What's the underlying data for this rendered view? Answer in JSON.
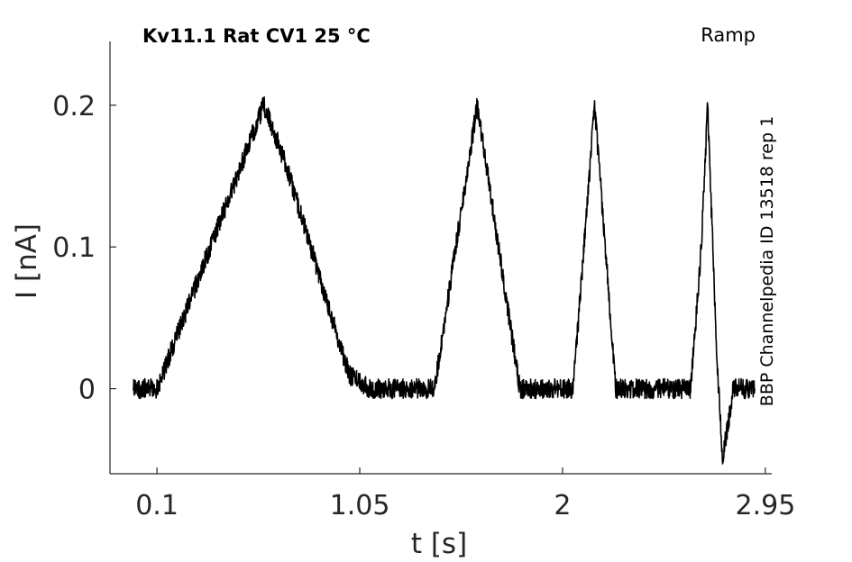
{
  "chart_data": {
    "type": "line",
    "title_left": "Kv11.1  Rat  CV1  25 °C",
    "title_right": "Ramp",
    "side_label": "BBP Channelpedia ID 13518 rep 1",
    "xlabel": "t [s]",
    "ylabel": "I [nA]",
    "xlim": [
      -0.12,
      2.98
    ],
    "ylim": [
      -0.06,
      0.245
    ],
    "x_ticks": [
      0.1,
      1.05,
      2,
      2.95
    ],
    "x_tick_labels": [
      "0.1",
      "1.05",
      "2",
      "2.95"
    ],
    "y_ticks": [
      0,
      0.1,
      0.2
    ],
    "y_tick_labels": [
      "0",
      "0.1",
      "0.2"
    ],
    "grid": false,
    "series": [
      {
        "color": "#000000",
        "x": [
          -0.01,
          0.05,
          0.1,
          0.2,
          0.3,
          0.4,
          0.5,
          0.6,
          0.7,
          0.8,
          0.9,
          1.0,
          1.1,
          1.2,
          1.3,
          1.4,
          1.5,
          1.6,
          1.7,
          1.8,
          1.9,
          2.0,
          2.05,
          2.1,
          2.15,
          2.2,
          2.25,
          2.3,
          2.4,
          2.5,
          2.6,
          2.65,
          2.68,
          2.72,
          2.75,
          2.8,
          2.9
        ],
        "y": [
          0,
          0,
          0,
          0.04,
          0.08,
          0.12,
          0.16,
          0.2,
          0.16,
          0.11,
          0.06,
          0.01,
          0,
          0,
          0,
          0,
          0.1,
          0.2,
          0.1,
          0,
          0,
          0,
          0,
          0.1,
          0.2,
          0.1,
          0,
          0,
          0,
          0,
          0,
          0.1,
          0.2,
          0.03,
          -0.05,
          0,
          0
        ]
      }
    ]
  }
}
